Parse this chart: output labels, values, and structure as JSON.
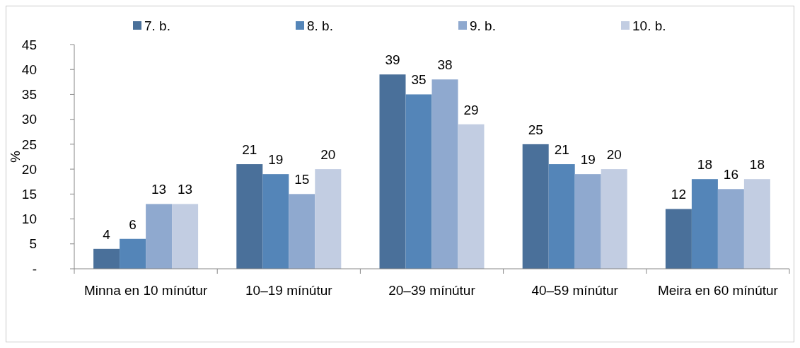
{
  "chart_data": {
    "type": "bar",
    "ylabel": "%",
    "categories": [
      "Minna en 10 mínútur",
      "10–19 mínútur",
      "20–39 mínútur",
      "40–59 mínútur",
      "Meira en 60 mínútur"
    ],
    "series": [
      {
        "name": "7. b.",
        "color": "#4a709a",
        "values": [
          4,
          21,
          39,
          25,
          12
        ]
      },
      {
        "name": "8. b.",
        "color": "#5485b8",
        "values": [
          6,
          19,
          35,
          21,
          18
        ]
      },
      {
        "name": "9. b.",
        "color": "#8fa9cf",
        "values": [
          13,
          15,
          38,
          19,
          16
        ]
      },
      {
        "name": "10. b.",
        "color": "#c2cde2",
        "values": [
          13,
          20,
          29,
          20,
          18
        ]
      }
    ],
    "ylim": [
      0,
      45
    ],
    "yticks": [
      {
        "value": 0,
        "label": "-"
      },
      5,
      10,
      15,
      20,
      25,
      30,
      35,
      40,
      45
    ],
    "data_labels": true,
    "legend": "top",
    "grid": false
  }
}
